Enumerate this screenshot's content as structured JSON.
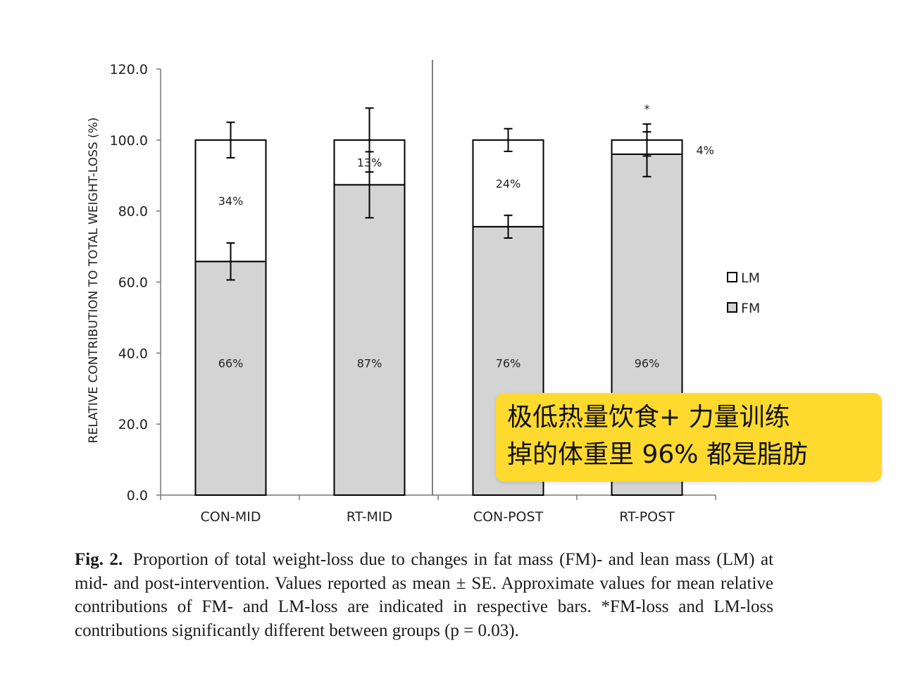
{
  "chart_data": {
    "type": "bar",
    "stacked": true,
    "categories": [
      "CON-MID",
      "RT-MID",
      "CON-POST",
      "RT-POST"
    ],
    "series": [
      {
        "name": "FM",
        "color": "#d4d4d4",
        "values": [
          65.8,
          87.4,
          75.6,
          96.0
        ],
        "labels": [
          "66%",
          "87%",
          "76%",
          "96%"
        ],
        "error": [
          5.2,
          9.3,
          3.2,
          6.3
        ]
      },
      {
        "name": "LM",
        "color": "#ffffff",
        "values": [
          34.2,
          12.6,
          24.4,
          4.0
        ],
        "labels": [
          "34%",
          "13%",
          "24%",
          "4%"
        ],
        "error": [
          5.0,
          9.0,
          3.2,
          4.5
        ]
      }
    ],
    "significance": [
      "",
      "",
      "",
      "*"
    ],
    "divider_after_category": 1,
    "ylabel": "RELATIVE CONTRIBUTION TO TOTAL WEIGHT-LOSS (%)",
    "ylim": [
      0,
      120
    ],
    "yticks": [
      "0.0",
      "20.0",
      "40.0",
      "60.0",
      "80.0",
      "100.0",
      "120.0"
    ],
    "legend": [
      "LM",
      "FM"
    ],
    "legend_position": "right"
  },
  "caption": {
    "figure_number": "Fig. 2.",
    "text": "Proportion of total weight-loss due to changes in fat mass (FM)- and lean mass (LM) at mid- and post-intervention. Values reported as mean ± SE. Approximate values for mean relative contributions of FM- and LM-loss are indicated in respective bars. *FM-loss and LM-loss contributions significantly different between groups (p = 0.03)."
  },
  "callout": {
    "line1": "极低热量饮食+ 力量训练",
    "line2": "掉的体重里 96% 都是脂肪"
  }
}
